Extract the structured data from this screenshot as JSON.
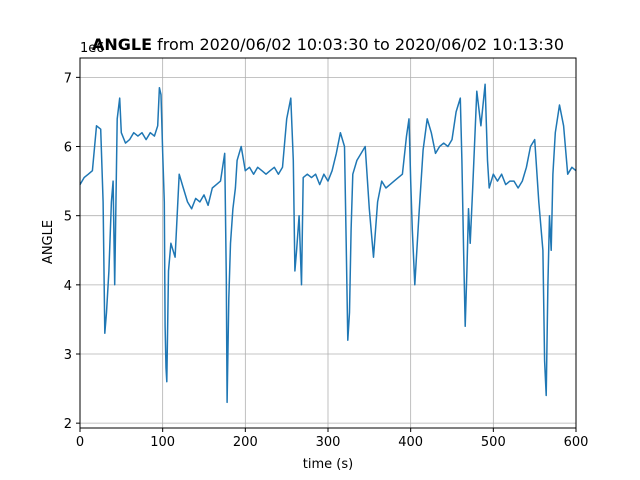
{
  "chart_data": {
    "type": "line",
    "title_bold": "ANGLE",
    "title_rest": " from 2020/06/02 10:03:30 to 2020/06/02 10:13:30",
    "xlabel": "time (s)",
    "ylabel": "ANGLE",
    "y_offset_text": "1e6",
    "xlim": [
      0,
      600
    ],
    "ylim": [
      1.93,
      7.28
    ],
    "x_ticks": [
      "0",
      "100",
      "200",
      "300",
      "400",
      "500",
      "600"
    ],
    "y_ticks": [
      "2",
      "3",
      "4",
      "5",
      "6",
      "7"
    ],
    "grid": true,
    "series": [
      {
        "color": "#1f77b4",
        "x": [
          0,
          5,
          10,
          15,
          20,
          25,
          28,
          30,
          32,
          35,
          38,
          40,
          42,
          45,
          48,
          50,
          55,
          60,
          65,
          70,
          75,
          80,
          85,
          90,
          94,
          96,
          98,
          100,
          102,
          103,
          104,
          105,
          107,
          110,
          115,
          120,
          125,
          130,
          135,
          140,
          145,
          150,
          155,
          160,
          165,
          170,
          175,
          177,
          178,
          180,
          182,
          185,
          188,
          190,
          195,
          200,
          205,
          210,
          215,
          220,
          225,
          230,
          235,
          240,
          245,
          250,
          255,
          258,
          260,
          262,
          265,
          268,
          270,
          275,
          280,
          285,
          290,
          295,
          300,
          305,
          310,
          315,
          320,
          322,
          324,
          326,
          328,
          330,
          335,
          340,
          345,
          350,
          355,
          360,
          365,
          370,
          375,
          380,
          385,
          390,
          395,
          398,
          400,
          402,
          405,
          410,
          415,
          420,
          425,
          430,
          435,
          440,
          445,
          450,
          455,
          460,
          462,
          464,
          466,
          468,
          470,
          472,
          475,
          480,
          485,
          490,
          493,
          495,
          500,
          505,
          510,
          515,
          520,
          525,
          530,
          535,
          540,
          545,
          550,
          555,
          560,
          562,
          564,
          566,
          568,
          570,
          572,
          575,
          580,
          585,
          590,
          595,
          600
        ],
        "values": [
          5.45,
          5.55,
          5.6,
          5.65,
          6.3,
          6.25,
          5.2,
          3.3,
          3.6,
          4.2,
          5.2,
          5.5,
          4.0,
          6.4,
          6.7,
          6.2,
          6.05,
          6.1,
          6.2,
          6.15,
          6.2,
          6.1,
          6.2,
          6.15,
          6.3,
          6.85,
          6.75,
          5.9,
          5.2,
          3.4,
          2.8,
          2.6,
          4.2,
          4.6,
          4.4,
          5.6,
          5.4,
          5.2,
          5.1,
          5.25,
          5.2,
          5.3,
          5.15,
          5.4,
          5.45,
          5.5,
          5.9,
          4.1,
          2.3,
          3.8,
          4.6,
          5.1,
          5.4,
          5.8,
          6.0,
          5.65,
          5.7,
          5.6,
          5.7,
          5.65,
          5.6,
          5.65,
          5.7,
          5.6,
          5.7,
          6.4,
          6.7,
          5.8,
          4.2,
          4.5,
          5.0,
          4.0,
          5.55,
          5.6,
          5.55,
          5.6,
          5.45,
          5.6,
          5.5,
          5.65,
          5.9,
          6.2,
          6.0,
          4.6,
          3.2,
          3.6,
          4.8,
          5.6,
          5.8,
          5.9,
          6.0,
          5.1,
          4.4,
          5.2,
          5.5,
          5.4,
          5.45,
          5.5,
          5.55,
          5.6,
          6.15,
          6.4,
          5.5,
          4.8,
          4.0,
          5.0,
          5.95,
          6.4,
          6.2,
          5.9,
          6.0,
          6.05,
          6.0,
          6.1,
          6.5,
          6.7,
          5.8,
          4.5,
          3.4,
          4.2,
          5.1,
          4.6,
          5.4,
          6.8,
          6.3,
          6.9,
          5.8,
          5.4,
          5.6,
          5.5,
          5.6,
          5.45,
          5.5,
          5.5,
          5.4,
          5.5,
          5.7,
          6.0,
          6.1,
          5.2,
          4.5,
          2.9,
          2.4,
          4.0,
          5.0,
          4.5,
          5.6,
          6.2,
          6.6,
          6.3,
          5.6,
          5.7,
          5.65
        ]
      }
    ]
  }
}
